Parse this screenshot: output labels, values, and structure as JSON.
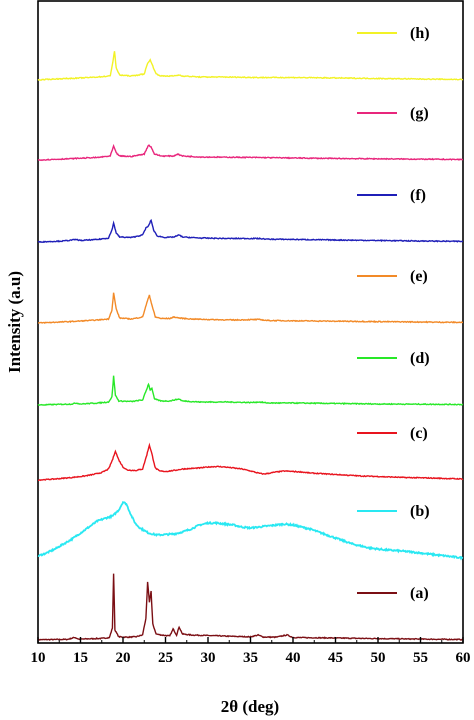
{
  "chart_data": {
    "type": "line",
    "xlabel": "2θ (deg)",
    "ylabel": "Intensity (a.u)",
    "xlim": [
      10,
      60
    ],
    "xticks": [
      10,
      15,
      20,
      25,
      30,
      35,
      40,
      45,
      50,
      55,
      60
    ],
    "yticks_shown": false,
    "grid": false,
    "legend_placement": "per-trace, right side",
    "series": [
      {
        "name": "(a)",
        "color": "#7b0f14",
        "offset": 0,
        "points": [
          [
            10,
            0.3
          ],
          [
            13.5,
            0.6
          ],
          [
            14.3,
            2.6
          ],
          [
            14.8,
            0.8
          ],
          [
            16,
            1.2
          ],
          [
            17.5,
            1.6
          ],
          [
            18.4,
            2.4
          ],
          [
            18.75,
            12
          ],
          [
            18.9,
            66
          ],
          [
            19.05,
            10
          ],
          [
            19.5,
            3.2
          ],
          [
            20.5,
            2.8
          ],
          [
            21.5,
            3.2
          ],
          [
            22.3,
            5
          ],
          [
            22.7,
            22
          ],
          [
            22.9,
            58
          ],
          [
            23.1,
            38
          ],
          [
            23.3,
            49
          ],
          [
            23.5,
            16
          ],
          [
            23.9,
            6
          ],
          [
            24.5,
            5
          ],
          [
            25.5,
            4
          ],
          [
            25.9,
            11
          ],
          [
            26.3,
            5
          ],
          [
            26.6,
            13
          ],
          [
            27,
            6
          ],
          [
            28,
            5
          ],
          [
            29.5,
            4.6
          ],
          [
            31,
            4.2
          ],
          [
            33,
            3.6
          ],
          [
            35,
            3.2
          ],
          [
            35.9,
            5
          ],
          [
            36.5,
            3
          ],
          [
            38,
            2.8
          ],
          [
            39.3,
            5
          ],
          [
            40,
            2.5
          ],
          [
            42,
            2.3
          ],
          [
            45,
            2
          ],
          [
            48,
            1.6
          ],
          [
            50,
            1.4
          ],
          [
            53,
            1.1
          ],
          [
            56,
            0.8
          ],
          [
            60,
            0.5
          ]
        ]
      },
      {
        "name": "(b)",
        "color": "#29e8f2",
        "offset": 82,
        "points": [
          [
            10,
            2
          ],
          [
            11,
            5
          ],
          [
            12,
            9
          ],
          [
            13,
            14
          ],
          [
            14,
            19
          ],
          [
            15,
            25
          ],
          [
            16,
            31
          ],
          [
            17,
            37
          ],
          [
            18,
            40
          ],
          [
            18.8,
            42
          ],
          [
            19.5,
            48
          ],
          [
            20,
            56
          ],
          [
            20.4,
            54
          ],
          [
            21,
            42
          ],
          [
            21.5,
            34
          ],
          [
            22,
            30
          ],
          [
            23,
            25
          ],
          [
            24,
            23
          ],
          [
            25,
            23.5
          ],
          [
            26,
            24
          ],
          [
            27,
            26
          ],
          [
            28,
            29
          ],
          [
            29,
            33
          ],
          [
            30,
            35
          ],
          [
            31,
            35
          ],
          [
            32,
            34
          ],
          [
            33,
            33
          ],
          [
            34,
            31
          ],
          [
            35,
            30
          ],
          [
            36,
            31
          ],
          [
            37,
            32
          ],
          [
            38,
            33
          ],
          [
            39,
            34
          ],
          [
            40,
            33
          ],
          [
            41,
            31
          ],
          [
            42,
            29
          ],
          [
            43,
            26
          ],
          [
            44,
            23
          ],
          [
            45,
            20
          ],
          [
            46,
            17
          ],
          [
            47,
            14
          ],
          [
            48,
            12
          ],
          [
            49,
            10
          ],
          [
            50,
            9
          ],
          [
            51,
            8
          ],
          [
            52,
            7.5
          ],
          [
            54,
            6
          ],
          [
            56,
            4
          ],
          [
            58,
            2
          ],
          [
            60,
            0
          ]
        ]
      },
      {
        "name": "(c)",
        "color": "#e8141e",
        "offset": 160,
        "points": [
          [
            10,
            0
          ],
          [
            12,
            1
          ],
          [
            14,
            2.5
          ],
          [
            15.5,
            4
          ],
          [
            16.5,
            5.5
          ],
          [
            17.5,
            7.5
          ],
          [
            18.3,
            11
          ],
          [
            18.8,
            21
          ],
          [
            19.1,
            29
          ],
          [
            19.5,
            20
          ],
          [
            20,
            13
          ],
          [
            20.5,
            10
          ],
          [
            21.5,
            9.5
          ],
          [
            22.3,
            11
          ],
          [
            22.8,
            25
          ],
          [
            23.1,
            35
          ],
          [
            23.4,
            26
          ],
          [
            23.8,
            12
          ],
          [
            24.3,
            9
          ],
          [
            25,
            8.5
          ],
          [
            26,
            9.5
          ],
          [
            27,
            11
          ],
          [
            28,
            11.5
          ],
          [
            29,
            12
          ],
          [
            30,
            13
          ],
          [
            31,
            13.5
          ],
          [
            32,
            13
          ],
          [
            33,
            12
          ],
          [
            34,
            11
          ],
          [
            35,
            9
          ],
          [
            35.9,
            7
          ],
          [
            36.5,
            6
          ],
          [
            37,
            6.5
          ],
          [
            38,
            8
          ],
          [
            39,
            9
          ],
          [
            40,
            8.5
          ],
          [
            41,
            8
          ],
          [
            42,
            7
          ],
          [
            44,
            6
          ],
          [
            46,
            5
          ],
          [
            48,
            4
          ],
          [
            50,
            3.5
          ],
          [
            53,
            2.5
          ],
          [
            56,
            2
          ],
          [
            60,
            1
          ]
        ]
      },
      {
        "name": "(d)",
        "color": "#28e828",
        "offset": 235,
        "points": [
          [
            10,
            0
          ],
          [
            14,
            1
          ],
          [
            14.5,
            2
          ],
          [
            15,
            1
          ],
          [
            17,
            2
          ],
          [
            18.3,
            3
          ],
          [
            18.7,
            8
          ],
          [
            18.9,
            29
          ],
          [
            19.1,
            10
          ],
          [
            19.5,
            4
          ],
          [
            21,
            3.5
          ],
          [
            22.3,
            5
          ],
          [
            22.8,
            16
          ],
          [
            23,
            21
          ],
          [
            23.2,
            15
          ],
          [
            23.4,
            17
          ],
          [
            23.7,
            6
          ],
          [
            24.5,
            4
          ],
          [
            25.5,
            4
          ],
          [
            26,
            5
          ],
          [
            26.6,
            6
          ],
          [
            27,
            4
          ],
          [
            29,
            3
          ],
          [
            32,
            3
          ],
          [
            35,
            2.5
          ],
          [
            36,
            3
          ],
          [
            37,
            2
          ],
          [
            40,
            2
          ],
          [
            45,
            1.5
          ],
          [
            50,
            1
          ],
          [
            55,
            0.8
          ],
          [
            60,
            0.5
          ]
        ]
      },
      {
        "name": "(e)",
        "color": "#f28a28",
        "offset": 317,
        "points": [
          [
            10,
            0
          ],
          [
            14,
            1.5
          ],
          [
            15,
            2
          ],
          [
            17,
            3
          ],
          [
            18.3,
            4
          ],
          [
            18.7,
            13
          ],
          [
            18.9,
            30
          ],
          [
            19.2,
            14
          ],
          [
            19.6,
            5
          ],
          [
            21,
            4
          ],
          [
            22.3,
            6
          ],
          [
            22.8,
            20
          ],
          [
            23.1,
            28
          ],
          [
            23.4,
            18
          ],
          [
            23.8,
            6
          ],
          [
            24.5,
            4.5
          ],
          [
            25.5,
            4.5
          ],
          [
            26,
            6
          ],
          [
            26.6,
            5
          ],
          [
            28,
            4
          ],
          [
            30,
            3.5
          ],
          [
            33,
            3
          ],
          [
            36,
            3.5
          ],
          [
            37,
            2.5
          ],
          [
            40,
            2.2
          ],
          [
            45,
            1.8
          ],
          [
            50,
            1.4
          ],
          [
            55,
            1
          ],
          [
            60,
            0.6
          ]
        ]
      },
      {
        "name": "(f)",
        "color": "#1f1fb8",
        "offset": 398,
        "points": [
          [
            10,
            0
          ],
          [
            13,
            1
          ],
          [
            14.5,
            2.5
          ],
          [
            15,
            1.5
          ],
          [
            17,
            2.5
          ],
          [
            18.3,
            4
          ],
          [
            18.7,
            12
          ],
          [
            18.9,
            19
          ],
          [
            19.2,
            9
          ],
          [
            19.6,
            5
          ],
          [
            21,
            4.5
          ],
          [
            22.3,
            7
          ],
          [
            22.7,
            14
          ],
          [
            23,
            16
          ],
          [
            23.3,
            22
          ],
          [
            23.6,
            12
          ],
          [
            24,
            6
          ],
          [
            25,
            4.5
          ],
          [
            26,
            5
          ],
          [
            26.6,
            7
          ],
          [
            27,
            5
          ],
          [
            29,
            4
          ],
          [
            32,
            3.5
          ],
          [
            36,
            3.5
          ],
          [
            37,
            2.8
          ],
          [
            40,
            2.6
          ],
          [
            45,
            2
          ],
          [
            50,
            1.5
          ],
          [
            55,
            1
          ],
          [
            60,
            0.6
          ]
        ]
      },
      {
        "name": "(g)",
        "color": "#e8267c",
        "offset": 480,
        "points": [
          [
            10,
            0
          ],
          [
            13,
            1
          ],
          [
            15,
            1.8
          ],
          [
            17,
            2.5
          ],
          [
            18.5,
            4
          ],
          [
            18.9,
            14
          ],
          [
            19.2,
            7
          ],
          [
            19.6,
            4
          ],
          [
            21,
            3.5
          ],
          [
            22.5,
            6
          ],
          [
            23,
            15
          ],
          [
            23.3,
            13
          ],
          [
            23.7,
            6
          ],
          [
            24.5,
            4
          ],
          [
            26,
            4
          ],
          [
            26.4,
            6
          ],
          [
            27,
            4
          ],
          [
            29,
            3
          ],
          [
            32,
            2.8
          ],
          [
            36,
            2.5
          ],
          [
            40,
            2
          ],
          [
            45,
            1.5
          ],
          [
            50,
            1.2
          ],
          [
            55,
            0.8
          ],
          [
            60,
            0.5
          ]
        ]
      },
      {
        "name": "(h)",
        "color": "#f2f226",
        "offset": 560,
        "points": [
          [
            10,
            0
          ],
          [
            12,
            1
          ],
          [
            15,
            2
          ],
          [
            17,
            3
          ],
          [
            18.5,
            4
          ],
          [
            18.8,
            18
          ],
          [
            19,
            29
          ],
          [
            19.2,
            12
          ],
          [
            19.6,
            5
          ],
          [
            21,
            4
          ],
          [
            22.5,
            6
          ],
          [
            22.9,
            17
          ],
          [
            23.2,
            20
          ],
          [
            23.5,
            14
          ],
          [
            23.9,
            6
          ],
          [
            24.5,
            4
          ],
          [
            26,
            4
          ],
          [
            26.6,
            5
          ],
          [
            27,
            4
          ],
          [
            29,
            3
          ],
          [
            32,
            3
          ],
          [
            36,
            2.5
          ],
          [
            40,
            2.5
          ],
          [
            45,
            2
          ],
          [
            50,
            1.5
          ],
          [
            55,
            1
          ],
          [
            60,
            0.5
          ]
        ]
      }
    ]
  }
}
